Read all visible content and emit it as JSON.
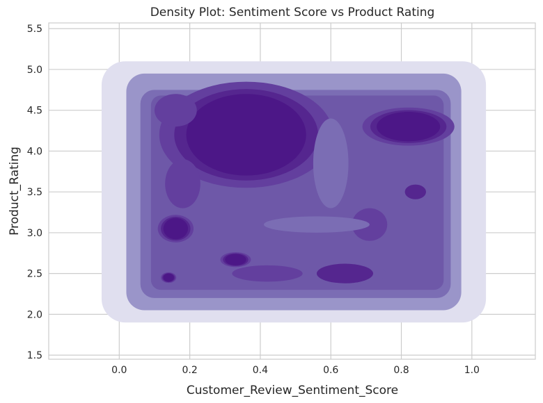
{
  "chart_data": {
    "type": "density",
    "title": "Density Plot: Sentiment Score vs Product Rating",
    "xlabel": "Customer_Review_Sentiment_Score",
    "ylabel": "Product_Rating",
    "xlim": [
      -0.2,
      1.18
    ],
    "ylim": [
      1.45,
      5.57
    ],
    "xticks": [
      "0.0",
      "0.2",
      "0.4",
      "0.6",
      "0.8",
      "1.0"
    ],
    "yticks": [
      "1.5",
      "2.0",
      "2.5",
      "3.0",
      "3.5",
      "4.0",
      "4.5",
      "5.0",
      "5.5"
    ],
    "grid": true,
    "fill": true,
    "colors": [
      "#e0dfef",
      "#9a95c9",
      "#7b6db4",
      "#6e58a8",
      "#633f9e",
      "#55268f",
      "#4c1787"
    ],
    "levels": [
      {
        "x_range": [
          -0.05,
          1.04
        ],
        "y_range": [
          1.9,
          5.1
        ]
      },
      {
        "x_range": [
          0.02,
          0.97
        ],
        "y_range": [
          2.05,
          4.95
        ]
      },
      {
        "x_range": [
          0.06,
          0.94
        ],
        "y_range": [
          2.2,
          4.75
        ]
      },
      {
        "x_range": [
          0.09,
          0.92
        ],
        "y_range": [
          2.3,
          4.68
        ]
      }
    ],
    "hotspots": [
      {
        "x": 0.36,
        "y": 4.2,
        "rx": 0.17,
        "ry": 0.5,
        "level": 6
      },
      {
        "x": 0.82,
        "y": 4.3,
        "rx": 0.09,
        "ry": 0.18,
        "level": 6
      },
      {
        "x": 0.16,
        "y": 4.5,
        "rx": 0.06,
        "ry": 0.2,
        "level": 4
      },
      {
        "x": 0.16,
        "y": 3.05,
        "rx": 0.035,
        "ry": 0.13,
        "level": 6
      },
      {
        "x": 0.33,
        "y": 2.67,
        "rx": 0.03,
        "ry": 0.07,
        "level": 6
      },
      {
        "x": 0.14,
        "y": 2.45,
        "rx": 0.015,
        "ry": 0.05,
        "level": 6
      },
      {
        "x": 0.84,
        "y": 3.5,
        "rx": 0.03,
        "ry": 0.09,
        "level": 5
      },
      {
        "x": 0.71,
        "y": 3.1,
        "rx": 0.05,
        "ry": 0.2,
        "level": 4
      },
      {
        "x": 0.64,
        "y": 2.5,
        "rx": 0.08,
        "ry": 0.12,
        "level": 5
      },
      {
        "x": 0.42,
        "y": 2.5,
        "rx": 0.1,
        "ry": 0.1,
        "level": 4
      },
      {
        "x": 0.18,
        "y": 3.6,
        "rx": 0.05,
        "ry": 0.3,
        "level": 4
      }
    ],
    "light_patches": [
      {
        "x": 0.6,
        "y": 3.85,
        "rx": 0.05,
        "ry": 0.55
      },
      {
        "x": 0.56,
        "y": 3.1,
        "rx": 0.15,
        "ry": 0.1
      }
    ]
  }
}
